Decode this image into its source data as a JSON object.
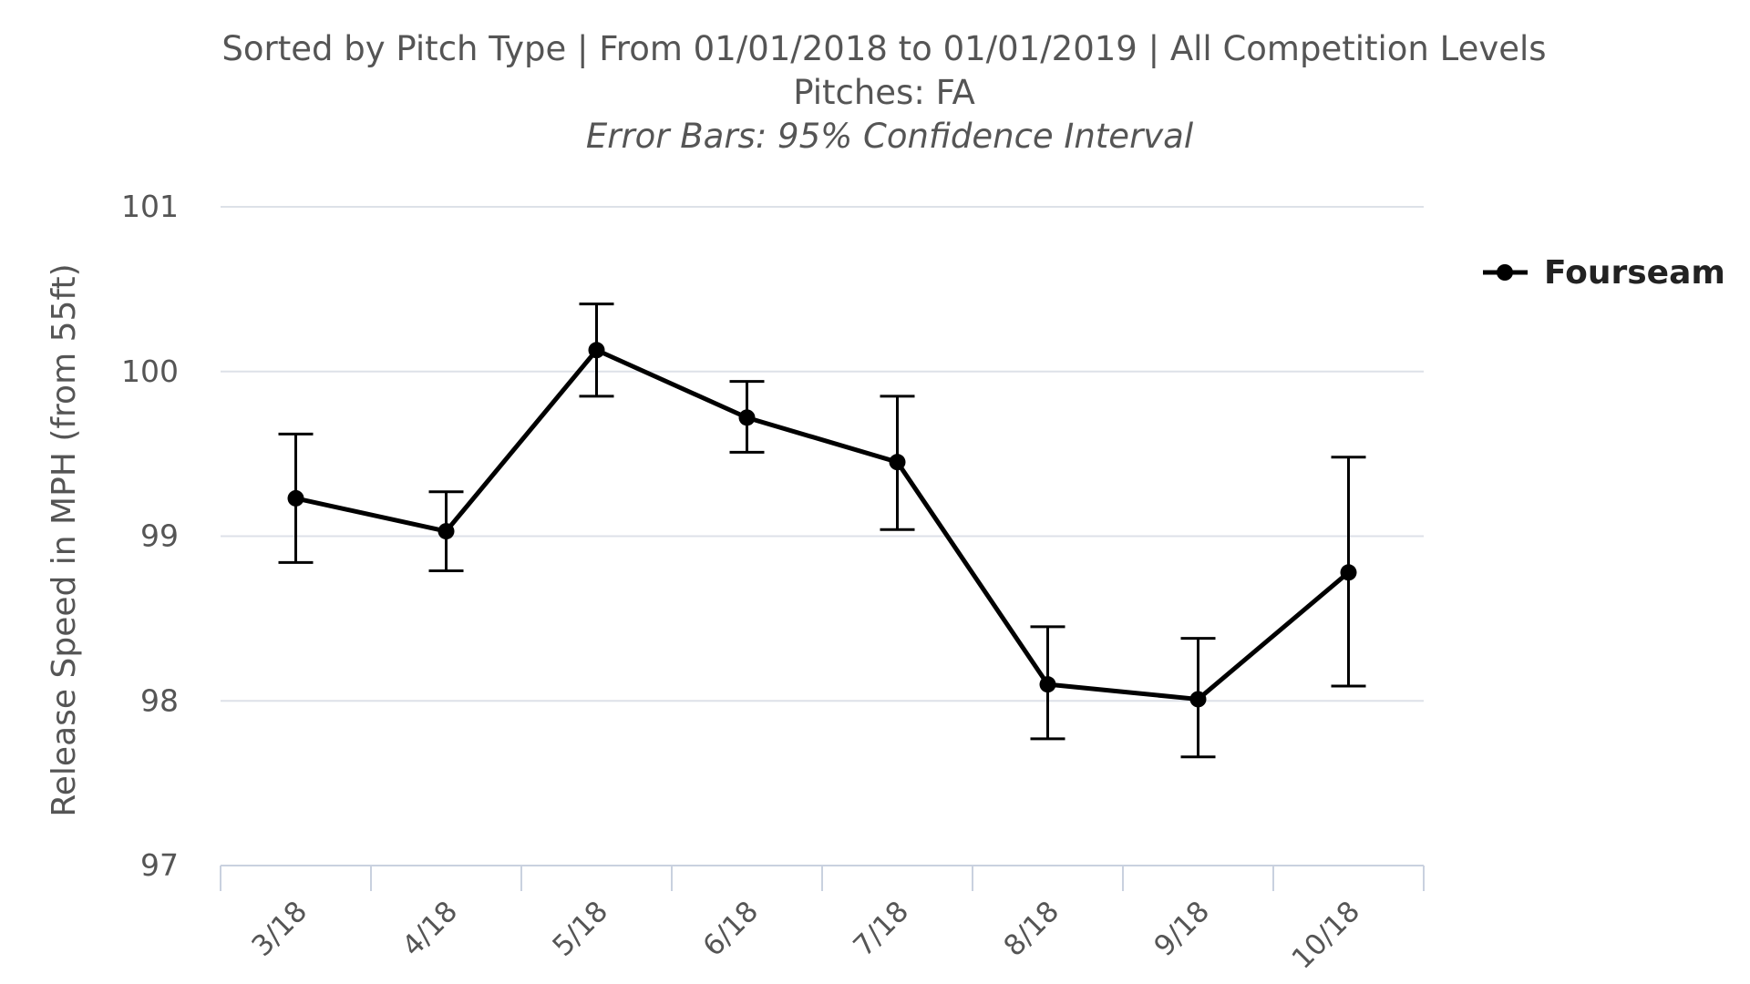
{
  "chart_data": {
    "type": "line",
    "title": "Sorted by Pitch Type | From 01/01/2018 to 01/01/2019 | All Competition Levels",
    "subtitle": "Pitches: FA",
    "note": "Error Bars: 95% Confidence Interval",
    "xlabel": "",
    "ylabel": "Release Speed in MPH (from 55ft)",
    "categories": [
      "3/18",
      "4/18",
      "5/18",
      "6/18",
      "7/18",
      "8/18",
      "9/18",
      "10/18"
    ],
    "ylim": [
      97,
      101
    ],
    "yticks": [
      97,
      98,
      99,
      100,
      101
    ],
    "grid": true,
    "legend_position": "right",
    "series": [
      {
        "name": "Fourseam",
        "color": "#000000",
        "values": [
          99.23,
          99.03,
          100.13,
          99.72,
          99.45,
          98.1,
          98.01,
          98.78
        ],
        "error_low": [
          98.84,
          98.79,
          99.85,
          99.51,
          99.04,
          97.77,
          97.66,
          98.09
        ],
        "error_high": [
          99.62,
          99.27,
          100.41,
          99.94,
          99.85,
          98.45,
          98.38,
          99.48
        ]
      }
    ]
  }
}
